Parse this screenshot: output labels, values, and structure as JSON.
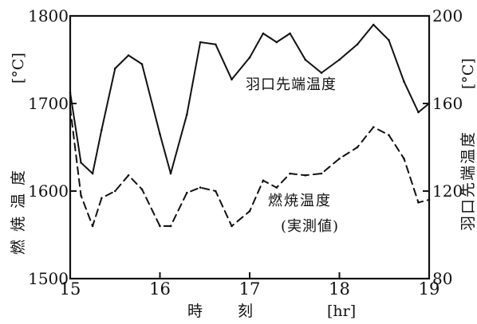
{
  "chart_data": {
    "type": "line",
    "top_caption": "",
    "x": [
      15,
      15.12,
      15.25,
      15.35,
      15.5,
      15.65,
      15.8,
      16.0,
      16.12,
      16.3,
      16.45,
      16.62,
      16.8,
      17.0,
      17.15,
      17.3,
      17.45,
      17.62,
      17.8,
      18.0,
      18.2,
      18.38,
      18.55,
      18.72,
      18.88,
      19.0
    ],
    "series": [
      {
        "name": "羽口先端温度",
        "axis": "right",
        "style": "solid",
        "values": [
          165,
          133,
          128,
          148,
          176,
          182,
          178,
          146,
          128,
          155,
          188,
          187,
          171,
          181,
          192,
          188,
          192,
          180,
          174,
          180,
          187,
          196,
          189,
          170,
          156,
          160
        ]
      },
      {
        "name": "燃焼温度",
        "sublabel": "(実測値)",
        "axis": "left",
        "style": "dashed",
        "values": [
          1695,
          1595,
          1560,
          1592,
          1600,
          1618,
          1602,
          1560,
          1560,
          1598,
          1604,
          1600,
          1560,
          1577,
          1612,
          1604,
          1620,
          1618,
          1620,
          1637,
          1650,
          1673,
          1664,
          1637,
          1587,
          1590
        ]
      }
    ],
    "xlabel": "時　　刻",
    "xunit": "[hr]",
    "xlim": [
      15,
      19
    ],
    "x_ticks": [
      "15",
      "16",
      "17",
      "18",
      "19"
    ],
    "y_left": {
      "label": "燃焼温度",
      "unit": "[°C]",
      "lim": [
        1500,
        1800
      ],
      "ticks": [
        "1500",
        "1600",
        "1700",
        "1800"
      ]
    },
    "y_right": {
      "label": "羽口先端温度",
      "unit": "[°C]",
      "lim": [
        80,
        200
      ],
      "ticks": [
        "80",
        "120",
        "160",
        "200"
      ]
    },
    "grid": false
  }
}
